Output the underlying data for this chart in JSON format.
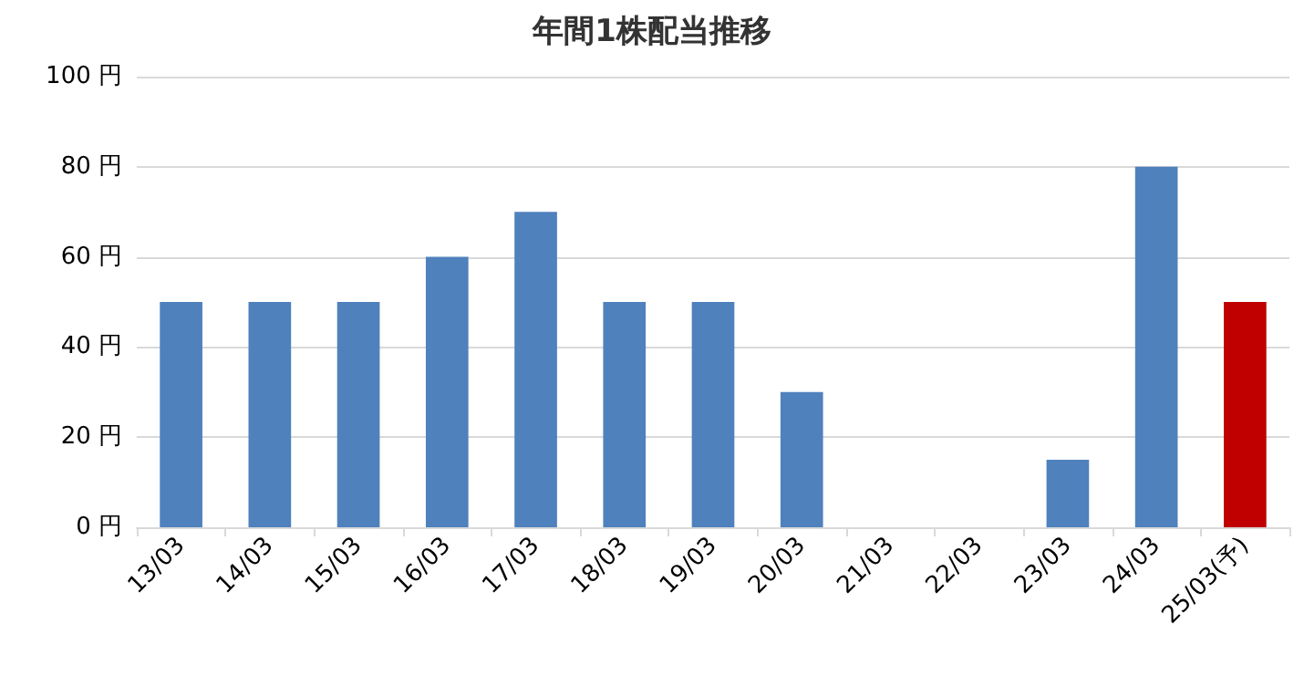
{
  "chart_data": {
    "type": "bar",
    "title": "年間1株配当推移",
    "categories": [
      "13/03",
      "14/03",
      "15/03",
      "16/03",
      "17/03",
      "18/03",
      "19/03",
      "20/03",
      "21/03",
      "22/03",
      "23/03",
      "24/03",
      "25/03(予)"
    ],
    "values": [
      50,
      50,
      50,
      60,
      70,
      50,
      50,
      30,
      0,
      0,
      15,
      80,
      50
    ],
    "colors": [
      "#4f81bd",
      "#4f81bd",
      "#4f81bd",
      "#4f81bd",
      "#4f81bd",
      "#4f81bd",
      "#4f81bd",
      "#4f81bd",
      "#4f81bd",
      "#4f81bd",
      "#4f81bd",
      "#4f81bd",
      "#c00000"
    ],
    "ylim": [
      0,
      100
    ],
    "yticks": [
      {
        "value": 0,
        "label": "0 円"
      },
      {
        "value": 20,
        "label": "20 円"
      },
      {
        "value": 40,
        "label": "40 円"
      },
      {
        "value": 60,
        "label": "60 円"
      },
      {
        "value": 80,
        "label": "80 円"
      },
      {
        "value": 100,
        "label": "100 円"
      }
    ],
    "grid": "y"
  }
}
